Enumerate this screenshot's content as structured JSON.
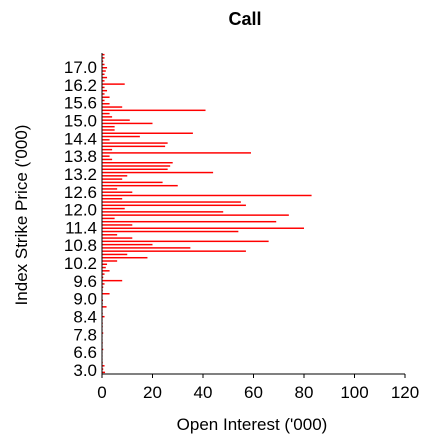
{
  "chart_data": {
    "type": "bar",
    "orientation": "horizontal",
    "title": "Call",
    "xlabel": "Open Interest ('000)",
    "ylabel": "Index Strike Price ('000)",
    "xlim": [
      0,
      120
    ],
    "xticks": [
      0,
      20,
      40,
      60,
      80,
      100,
      120
    ],
    "ytick_labels": [
      "3.0",
      "6.6",
      "7.8",
      "8.4",
      "9.0",
      "9.6",
      "10.2",
      "10.8",
      "11.4",
      "12.0",
      "12.6",
      "13.2",
      "13.8",
      "14.4",
      "15.0",
      "15.6",
      "16.2",
      "17.0"
    ],
    "grid": false,
    "bar_color": "#ff0000",
    "values": [
      1.2,
      0.5,
      1.0,
      0.3,
      0.2,
      0.1,
      0.2,
      0.5,
      0.2,
      0.3,
      0.1,
      0.2,
      0.5,
      0.2,
      0.3,
      0.3,
      0.2,
      1.0,
      0.3,
      0.2,
      1.8,
      0.3,
      0.4,
      0.2,
      3.0,
      0.3,
      0.5,
      1.0,
      8.0,
      0.5,
      1.0,
      3.0,
      1.5,
      2.0,
      6.0,
      18.0,
      10.0,
      57.0,
      35.0,
      20.0,
      66.0,
      12.0,
      6.0,
      54.0,
      80.0,
      12.0,
      69.0,
      5.0,
      74.0,
      48.0,
      9.0,
      57.0,
      55.0,
      8.0,
      83.0,
      12.0,
      6.0,
      30.0,
      24.0,
      8.0,
      10.0,
      44.0,
      26.0,
      27.0,
      28.0,
      4.0,
      3.0,
      59.0,
      4.0,
      25.0,
      26.0,
      3.0,
      15.0,
      36.0,
      5.0,
      5.0,
      20.0,
      11.0,
      4.0,
      3.0,
      41.0,
      8.0,
      3.0,
      1.0,
      3.0,
      1.0,
      2.0,
      1.0,
      9.0,
      1.0,
      2.0,
      1.0,
      1.5,
      2.0,
      1.0,
      0.5,
      1.0,
      1.0
    ]
  }
}
